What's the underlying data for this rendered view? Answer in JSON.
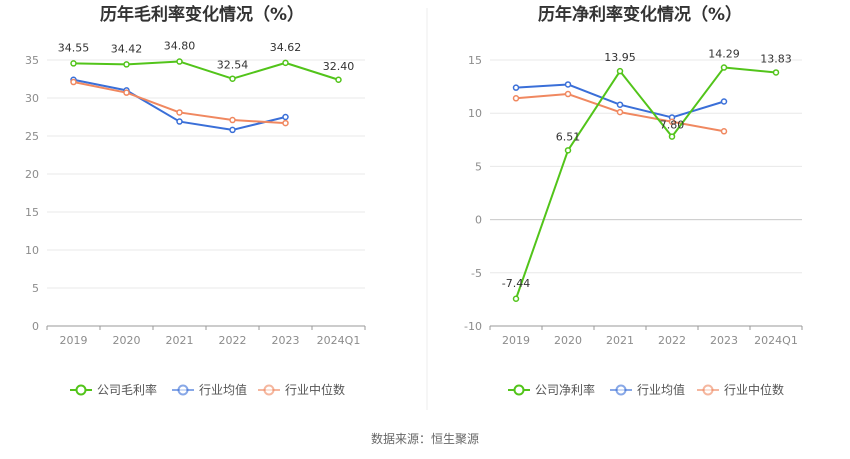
{
  "source": "数据来源：恒生聚源",
  "chart_data": [
    {
      "type": "line",
      "title": "历年毛利率变化情况（%）",
      "categories": [
        "2019",
        "2020",
        "2021",
        "2022",
        "2023",
        "2024Q1"
      ],
      "ylim": [
        0,
        35
      ],
      "yticks": [
        0,
        5,
        10,
        15,
        20,
        25,
        30,
        35
      ],
      "grid": true,
      "legend_position": "bottom",
      "series": [
        {
          "name": "公司毛利率",
          "color": "#52c41a",
          "values": [
            34.55,
            34.42,
            34.8,
            32.54,
            34.62,
            32.4
          ],
          "labels": [
            "34.55",
            "34.42",
            "34.80",
            "32.54",
            "34.62",
            "32.40"
          ]
        },
        {
          "name": "行业均值",
          "color": "#3a6fd8",
          "values": [
            32.4,
            31.0,
            26.9,
            25.8,
            27.5,
            null
          ]
        },
        {
          "name": "行业中位数",
          "color": "#f08860",
          "values": [
            32.1,
            30.7,
            28.1,
            27.1,
            26.7,
            null
          ]
        }
      ]
    },
    {
      "type": "line",
      "title": "历年净利率变化情况（%）",
      "categories": [
        "2019",
        "2020",
        "2021",
        "2022",
        "2023",
        "2024Q1"
      ],
      "ylim": [
        -10,
        15
      ],
      "yticks": [
        -10,
        -5,
        0,
        5,
        10,
        15
      ],
      "grid": true,
      "legend_position": "bottom",
      "series": [
        {
          "name": "公司净利率",
          "color": "#52c41a",
          "values": [
            -7.44,
            6.51,
            13.95,
            7.8,
            14.29,
            13.83
          ],
          "labels": [
            "-7.44",
            "6.51",
            "13.95",
            "7.80",
            "14.29",
            "13.83"
          ]
        },
        {
          "name": "行业均值",
          "color": "#3a6fd8",
          "values": [
            12.4,
            12.7,
            10.8,
            9.6,
            11.1,
            null
          ]
        },
        {
          "name": "行业中位数",
          "color": "#f08860",
          "values": [
            11.4,
            11.8,
            10.1,
            9.2,
            8.3,
            null
          ]
        }
      ]
    }
  ]
}
